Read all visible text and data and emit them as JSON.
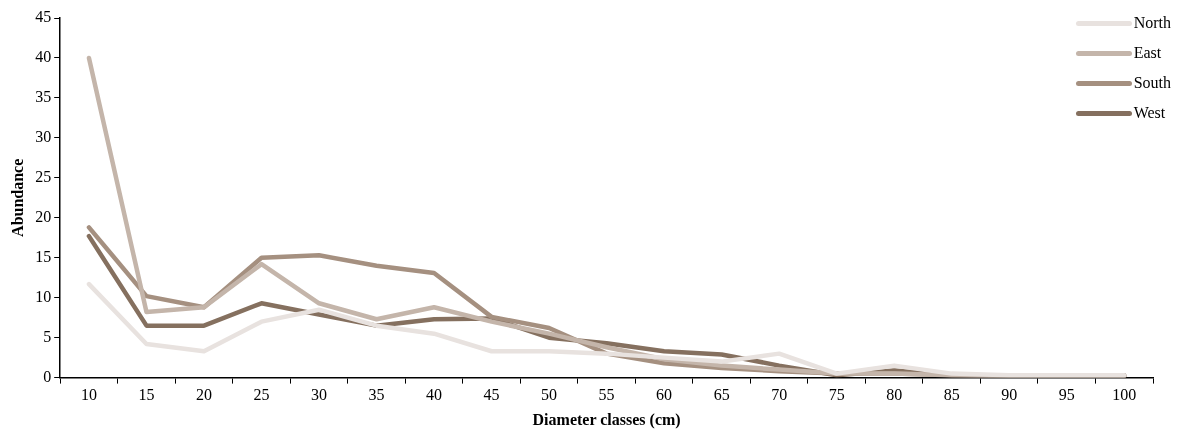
{
  "chart_data": {
    "type": "line",
    "xlabel": "Diameter classes (cm)",
    "ylabel": "Abundance",
    "categories": [
      "10",
      "15",
      "20",
      "25",
      "30",
      "35",
      "40",
      "45",
      "50",
      "55",
      "60",
      "65",
      "70",
      "75",
      "80",
      "85",
      "90",
      "95",
      "100"
    ],
    "ylim": [
      0,
      45
    ],
    "yticks": [
      0,
      5,
      10,
      15,
      20,
      25,
      30,
      35,
      40,
      45
    ],
    "grid": false,
    "legend": "top right",
    "marker": "none",
    "series": [
      {
        "name": "North",
        "color": "#e8e2df",
        "values": [
          11.7,
          4.2,
          3.3,
          7,
          8.5,
          6.5,
          5.5,
          3.3,
          3.3,
          3,
          2.5,
          2,
          3,
          0.5,
          1.5,
          0.5,
          0.3,
          0.3,
          0.3
        ]
      },
      {
        "name": "East",
        "color": "#c4b5aa",
        "values": [
          40,
          8.2,
          8.8,
          14.2,
          9.3,
          7.3,
          8.8,
          7,
          5.5,
          3.8,
          2.3,
          1.5,
          1,
          0.5,
          0.5,
          0.3,
          0.2,
          0.2,
          0.2
        ]
      },
      {
        "name": "South",
        "color": "#a59080",
        "values": [
          18.8,
          10.2,
          8.8,
          15,
          15.3,
          14,
          13.1,
          7.6,
          6.2,
          3,
          1.8,
          1.2,
          0.8,
          0.5,
          0.5,
          0.3,
          0.2,
          0.2,
          0.2
        ]
      },
      {
        "name": "West",
        "color": "#85705f",
        "values": [
          17.7,
          6.5,
          6.5,
          9.3,
          7.9,
          6.5,
          7.3,
          7.4,
          5,
          4.3,
          3.3,
          2.9,
          1.5,
          0.3,
          0.9,
          0.3,
          0.3,
          0.3,
          0.3
        ]
      }
    ]
  }
}
